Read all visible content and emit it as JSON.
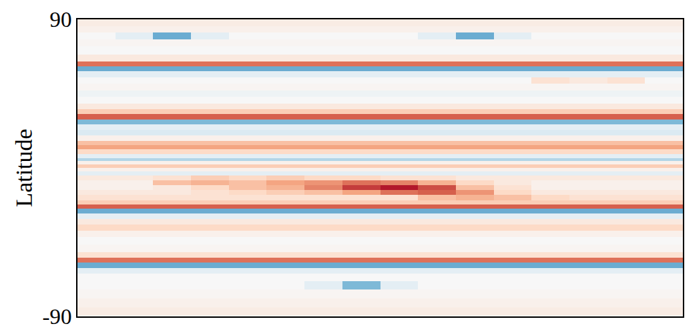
{
  "chart_data": {
    "type": "heatmap",
    "y_label": "Latitude",
    "x": [
      0,
      1,
      2,
      3,
      4,
      5,
      6,
      7,
      8,
      9,
      10,
      11,
      12,
      13,
      14,
      15
    ],
    "y": [
      -87,
      -82,
      -76,
      -71,
      -66,
      -62,
      -59,
      -56,
      -53,
      -49,
      -44,
      -40,
      -36,
      -33,
      -29,
      -26,
      -23,
      -21,
      -18,
      -15,
      -12,
      -9,
      -6,
      -3,
      -1,
      1,
      3,
      5,
      7,
      10,
      13,
      15,
      18,
      21,
      25,
      28,
      31,
      34,
      37,
      41,
      45,
      49,
      53,
      57,
      60,
      63,
      66,
      71,
      76,
      80,
      84,
      88
    ],
    "z": [
      [
        0.08,
        0.08,
        0.08,
        0.08,
        0.08,
        0.08,
        0.08,
        0.08,
        0.08,
        0.08,
        0.08,
        0.08,
        0.08,
        0.08,
        0.08,
        0.08
      ],
      [
        0.05,
        0.05,
        0.05,
        0.05,
        0.05,
        0.05,
        0.05,
        0.05,
        0.05,
        0.05,
        0.05,
        0.05,
        0.05,
        0.05,
        0.05,
        0.05
      ],
      [
        0.02,
        0.02,
        0.02,
        0.02,
        0.02,
        0.02,
        0.02,
        0.02,
        0.02,
        0.02,
        0.02,
        0.02,
        0.02,
        0.02,
        0.02,
        0.02
      ],
      [
        0,
        0,
        0,
        0,
        0,
        0,
        -0.1,
        -0.45,
        -0.1,
        0,
        0,
        0,
        0,
        0,
        0,
        0
      ],
      [
        0,
        0,
        0,
        0,
        0,
        0,
        0,
        0,
        0,
        0,
        0,
        0,
        0,
        0,
        0,
        0
      ],
      [
        -0.1,
        -0.1,
        -0.1,
        -0.1,
        -0.1,
        -0.1,
        -0.1,
        -0.1,
        -0.1,
        -0.1,
        -0.1,
        -0.1,
        -0.1,
        -0.1,
        -0.1,
        -0.1
      ],
      [
        -0.5,
        -0.5,
        -0.5,
        -0.5,
        -0.5,
        -0.5,
        -0.5,
        -0.5,
        -0.5,
        -0.5,
        -0.5,
        -0.5,
        -0.5,
        -0.5,
        -0.5,
        -0.5
      ],
      [
        0.55,
        0.55,
        0.55,
        0.55,
        0.55,
        0.55,
        0.55,
        0.55,
        0.55,
        0.55,
        0.55,
        0.55,
        0.55,
        0.55,
        0.55,
        0.55
      ],
      [
        0.15,
        0.15,
        0.15,
        0.15,
        0.15,
        0.15,
        0.15,
        0.15,
        0.15,
        0.15,
        0.15,
        0.15,
        0.15,
        0.15,
        0.15,
        0.15
      ],
      [
        0.02,
        0.02,
        0.02,
        0.02,
        0.02,
        0.02,
        0.02,
        0.02,
        0.02,
        0.02,
        0.02,
        0.02,
        0.02,
        0.02,
        0.02,
        0.02
      ],
      [
        0,
        0,
        0,
        0,
        0,
        0,
        0,
        0,
        0,
        0,
        0,
        0,
        0,
        0,
        0,
        0
      ],
      [
        0.05,
        0.05,
        0.05,
        0.05,
        0.05,
        0.05,
        0.05,
        0.05,
        0.05,
        0.05,
        0.05,
        0.05,
        0.05,
        0.05,
        0.05,
        0.05
      ],
      [
        0.2,
        0.2,
        0.2,
        0.2,
        0.2,
        0.2,
        0.2,
        0.2,
        0.2,
        0.2,
        0.2,
        0.2,
        0.2,
        0.2,
        0.2,
        0.2
      ],
      [
        0.1,
        0.1,
        0.1,
        0.1,
        0.1,
        0.1,
        0.1,
        0.1,
        0.1,
        0.1,
        0.1,
        0.1,
        0.1,
        0.1,
        0.1,
        0.1
      ],
      [
        -0.1,
        -0.1,
        -0.1,
        -0.1,
        -0.1,
        -0.1,
        -0.1,
        -0.1,
        -0.1,
        -0.1,
        -0.1,
        -0.1,
        -0.1,
        -0.1,
        -0.1,
        -0.1
      ],
      [
        -0.5,
        -0.5,
        -0.5,
        -0.5,
        -0.5,
        -0.5,
        -0.5,
        -0.5,
        -0.5,
        -0.5,
        -0.5,
        -0.5,
        -0.5,
        -0.5,
        -0.5,
        -0.5
      ],
      [
        0.6,
        0.6,
        0.6,
        0.6,
        0.6,
        0.6,
        0.6,
        0.6,
        0.6,
        0.6,
        0.6,
        0.6,
        0.6,
        0.6,
        0.6,
        0.6
      ],
      [
        0.25,
        0.25,
        0.25,
        0.25,
        0.25,
        0.25,
        0.25,
        0.25,
        0.25,
        0.25,
        0.25,
        0.25,
        0.25,
        0.25,
        0.25,
        0.25
      ],
      [
        0.15,
        0.15,
        0.15,
        0.15,
        0.15,
        0.15,
        0.15,
        0.15,
        0.15,
        0.3,
        0.35,
        0.3,
        0.2,
        0.15,
        0.15,
        0.15
      ],
      [
        0.1,
        0.1,
        0.1,
        0.15,
        0.2,
        0.25,
        0.3,
        0.4,
        0.55,
        0.6,
        0.45,
        0.2,
        0.1,
        0.1,
        0.1,
        0.1
      ],
      [
        0.05,
        0.05,
        0.1,
        0.2,
        0.3,
        0.35,
        0.5,
        0.7,
        0.8,
        0.65,
        0.3,
        0.15,
        0.05,
        0.05,
        0.05,
        0.05
      ],
      [
        0.05,
        0.05,
        0.3,
        0.35,
        0.3,
        0.4,
        0.45,
        0.55,
        0.5,
        0.35,
        0.2,
        0.1,
        0.05,
        0.05,
        0.05,
        0.05
      ],
      [
        0.1,
        0.1,
        0.15,
        0.25,
        0.2,
        0.25,
        0.2,
        0.2,
        0.15,
        0.15,
        0.1,
        0.1,
        0.1,
        0.1,
        0.1,
        0.1
      ],
      [
        -0.1,
        -0.1,
        -0.1,
        -0.1,
        -0.1,
        -0.1,
        -0.1,
        -0.1,
        -0.1,
        -0.1,
        -0.1,
        -0.1,
        -0.1,
        -0.1,
        -0.1,
        -0.1
      ],
      [
        0.05,
        0.05,
        0.05,
        0.05,
        0.05,
        0.05,
        0.05,
        0.05,
        0.05,
        0.05,
        0.05,
        0.05,
        0.05,
        0.05,
        0.05,
        0.05
      ],
      [
        0.25,
        0.25,
        0.25,
        0.25,
        0.25,
        0.25,
        0.25,
        0.25,
        0.25,
        0.25,
        0.25,
        0.25,
        0.25,
        0.25,
        0.25,
        0.25
      ],
      [
        0.05,
        0.05,
        0.05,
        0.05,
        0.05,
        0.05,
        0.05,
        0.05,
        0.05,
        0.05,
        0.05,
        0.05,
        0.05,
        0.05,
        0.05,
        0.05
      ],
      [
        -0.3,
        -0.3,
        -0.3,
        -0.3,
        -0.3,
        -0.3,
        -0.3,
        -0.3,
        -0.3,
        -0.3,
        -0.3,
        -0.3,
        -0.3,
        -0.3,
        -0.3,
        -0.3
      ],
      [
        -0.1,
        -0.1,
        -0.1,
        -0.1,
        -0.1,
        -0.1,
        -0.1,
        -0.1,
        -0.1,
        -0.1,
        -0.1,
        -0.1,
        -0.1,
        -0.1,
        -0.1,
        -0.1
      ],
      [
        0.2,
        0.2,
        0.2,
        0.2,
        0.2,
        0.2,
        0.2,
        0.2,
        0.2,
        0.2,
        0.2,
        0.2,
        0.2,
        0.2,
        0.2,
        0.2
      ],
      [
        0.4,
        0.4,
        0.4,
        0.4,
        0.4,
        0.4,
        0.4,
        0.4,
        0.4,
        0.4,
        0.4,
        0.4,
        0.4,
        0.4,
        0.4,
        0.4
      ],
      [
        0.3,
        0.3,
        0.3,
        0.3,
        0.3,
        0.3,
        0.3,
        0.3,
        0.3,
        0.3,
        0.3,
        0.3,
        0.3,
        0.3,
        0.3,
        0.3
      ],
      [
        0.05,
        0.05,
        0.05,
        0.05,
        0.05,
        0.05,
        0.05,
        0.05,
        0.05,
        0.05,
        0.05,
        0.05,
        0.05,
        0.05,
        0.05,
        0.05
      ],
      [
        -0.15,
        -0.15,
        -0.15,
        -0.15,
        -0.15,
        -0.15,
        -0.15,
        -0.15,
        -0.15,
        -0.15,
        -0.15,
        -0.15,
        -0.15,
        -0.15,
        -0.15,
        -0.15
      ],
      [
        -0.1,
        -0.1,
        -0.1,
        -0.1,
        -0.1,
        -0.1,
        -0.1,
        -0.1,
        -0.1,
        -0.1,
        -0.1,
        -0.1,
        -0.1,
        -0.1,
        -0.1,
        -0.1
      ],
      [
        -0.45,
        -0.45,
        -0.45,
        -0.45,
        -0.45,
        -0.45,
        -0.45,
        -0.45,
        -0.45,
        -0.45,
        -0.45,
        -0.45,
        -0.45,
        -0.45,
        -0.45,
        -0.45
      ],
      [
        0.6,
        0.6,
        0.6,
        0.6,
        0.6,
        0.6,
        0.6,
        0.6,
        0.6,
        0.6,
        0.6,
        0.6,
        0.6,
        0.6,
        0.6,
        0.6
      ],
      [
        0.25,
        0.25,
        0.25,
        0.25,
        0.25,
        0.25,
        0.25,
        0.25,
        0.25,
        0.25,
        0.25,
        0.25,
        0.25,
        0.25,
        0.25,
        0.25
      ],
      [
        0.1,
        0.1,
        0.1,
        0.1,
        0.1,
        0.1,
        0.1,
        0.1,
        0.1,
        0.1,
        0.1,
        0.1,
        0.1,
        0.1,
        0.1,
        0.1
      ],
      [
        0,
        0,
        0,
        0,
        0,
        0,
        0,
        0,
        0,
        0,
        0,
        0,
        0,
        0,
        0,
        0
      ],
      [
        -0.05,
        -0.05,
        -0.05,
        -0.05,
        -0.05,
        -0.05,
        -0.05,
        -0.05,
        -0.05,
        -0.05,
        -0.05,
        -0.05,
        -0.05,
        -0.05,
        -0.05,
        -0.05
      ],
      [
        0.02,
        0.02,
        0.02,
        0.02,
        0.02,
        0.02,
        0.02,
        0.02,
        0.02,
        0.02,
        0.02,
        0.02,
        0.02,
        0.02,
        0.02,
        0.02
      ],
      [
        0,
        0,
        0,
        0,
        0,
        0,
        0,
        0,
        0,
        0,
        0,
        0,
        0.15,
        0.1,
        0.15,
        0
      ],
      [
        -0.1,
        -0.1,
        -0.1,
        -0.1,
        -0.1,
        -0.1,
        -0.1,
        -0.1,
        -0.1,
        -0.1,
        -0.1,
        -0.1,
        -0.1,
        -0.1,
        -0.1,
        -0.1
      ],
      [
        -0.5,
        -0.5,
        -0.5,
        -0.5,
        -0.5,
        -0.5,
        -0.5,
        -0.5,
        -0.5,
        -0.5,
        -0.5,
        -0.5,
        -0.5,
        -0.5,
        -0.5,
        -0.5
      ],
      [
        0.55,
        0.55,
        0.55,
        0.55,
        0.55,
        0.55,
        0.55,
        0.55,
        0.55,
        0.55,
        0.55,
        0.55,
        0.55,
        0.55,
        0.55,
        0.55
      ],
      [
        0.1,
        0.1,
        0.1,
        0.1,
        0.1,
        0.1,
        0.1,
        0.1,
        0.1,
        0.1,
        0.1,
        0.1,
        0.1,
        0.1,
        0.1,
        0.1
      ],
      [
        0,
        0,
        0,
        0,
        0,
        0,
        0,
        0,
        0,
        0,
        0,
        0,
        0,
        0,
        0,
        0
      ],
      [
        0.02,
        0.02,
        0.02,
        0.02,
        0.02,
        0.02,
        0.02,
        0.02,
        0.02,
        0.02,
        0.02,
        0.02,
        0.02,
        0.02,
        0.02,
        0.02
      ],
      [
        0,
        -0.1,
        -0.5,
        -0.1,
        0,
        0,
        0,
        0,
        0,
        -0.1,
        -0.5,
        -0.1,
        0,
        0,
        0,
        0
      ],
      [
        0.05,
        0.05,
        0.05,
        0.05,
        0.05,
        0.05,
        0.05,
        0.05,
        0.05,
        0.05,
        0.05,
        0.05,
        0.05,
        0.05,
        0.05,
        0.05
      ],
      [
        0.08,
        0.08,
        0.08,
        0.08,
        0.08,
        0.08,
        0.08,
        0.08,
        0.08,
        0.08,
        0.08,
        0.08,
        0.08,
        0.08,
        0.08,
        0.08
      ]
    ],
    "xlim": [
      -0.5,
      15.5
    ],
    "ylim": [
      -90,
      90
    ],
    "yticks": [
      -90,
      90
    ],
    "zlim": [
      -1,
      1
    ],
    "tick_labels": "y"
  }
}
